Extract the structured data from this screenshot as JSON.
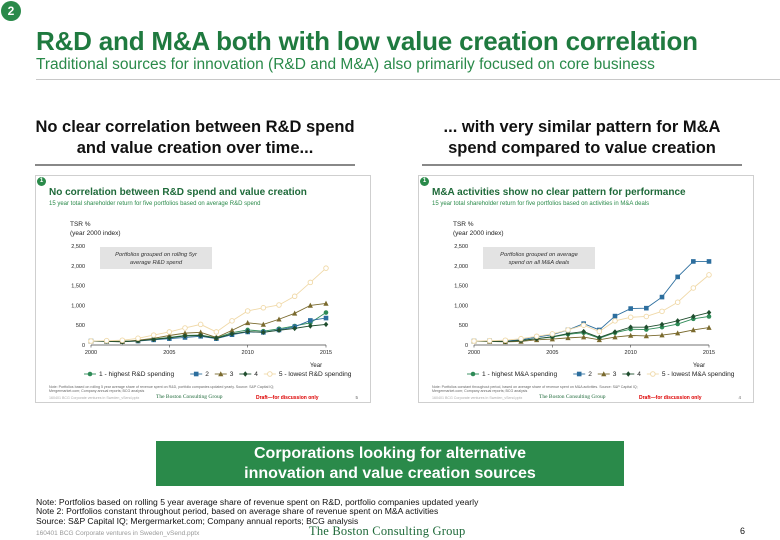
{
  "page": {
    "badge": "2",
    "title": "R&D and M&A both with low value creation correlation",
    "subtitle": "Traditional sources for innovation (R&D and M&A) also primarily focused on core business",
    "left_heading_1": "No clear correlation between R&D spend",
    "left_heading_2": "and value creation over time...",
    "right_heading_1": "... with very similar pattern for M&A",
    "right_heading_2": "spend compared to value creation",
    "callout_1": "Corporations looking for alternative",
    "callout_2": "innovation and value creation sources",
    "note_1": "Note: Portfolios based on rolling 5 year average share of revenue spent on R&D, portfolio companies updated yearly",
    "note_2": "Note 2: Portfolios constant throughout period, based on average share of revenue spent on M&A activities",
    "source": "Source: S&P Capital IQ; Mergermarket.com; Company annual reports; BCG analysis",
    "file": "160401 BCG Corporate ventures in Sweden_vSend.pptx",
    "brand": "The Boston Consulting Group",
    "page_number": "6"
  },
  "panels": [
    {
      "badge": "1",
      "title": "No correlation between R&D spend and value creation",
      "subtitle": "15 year total shareholder return for five portfolios based on average R&D spend",
      "annotation_1": "Portfolios grouped on rolling 5yr",
      "annotation_2": "average R&D spend",
      "note": "Note: Portfolios based on rolling 5 year average share of revenue spent on R&D, portfolio companies updated yearly. Source: S&P Capital IQ; Mergermarket.com; Company annual reports; BCG analysis",
      "footer": "160401 BCG Corporate ventures in Sweden_vSend.pptx",
      "brand": "The Boston Consulting Group",
      "draft": "Draft—for discussion only",
      "page": "5"
    },
    {
      "badge": "1",
      "title": "M&A activities show no clear pattern for performance",
      "subtitle": "15 year total shareholder return for five portfolios based on activities in M&A deals",
      "annotation_1": "Portfolios grouped on average",
      "annotation_2": "spend on all M&A deals",
      "note": "Note: Portfolios constant throughout period, based on average share of revenue spent on M&A activities. Source: S&P Capital IQ; Mergermarket.com; Company annual reports; BCG analysis",
      "footer": "160401 BCG Corporate ventures in Sweden_vSend.pptx",
      "brand": "The Boston Consulting Group",
      "draft": "Draft—for discussion only",
      "page": "4"
    }
  ],
  "chart_data": [
    {
      "type": "line",
      "ylabel": "TSR %\n(year 2000 index)",
      "xlabel": "Year",
      "x": [
        2000,
        2001,
        2002,
        2003,
        2004,
        2005,
        2006,
        2007,
        2008,
        2009,
        2010,
        2011,
        2012,
        2013,
        2014,
        2015
      ],
      "xticks": [
        2000,
        2005,
        2010,
        2015
      ],
      "yticks": [
        0,
        500,
        1000,
        1500,
        2000,
        2500
      ],
      "ylim": [
        0,
        2500
      ],
      "xlim": [
        2000,
        2015
      ],
      "series": [
        {
          "name": "1 - highest R&D spending",
          "color": "#2e8b57",
          "marker": "circle",
          "values": [
            100,
            100,
            95,
            110,
            150,
            190,
            240,
            250,
            180,
            310,
            380,
            350,
            410,
            480,
            560,
            820
          ]
        },
        {
          "name": "2",
          "color": "#2c6e9e",
          "marker": "square",
          "values": [
            100,
            90,
            85,
            100,
            130,
            160,
            190,
            220,
            160,
            260,
            330,
            320,
            380,
            460,
            620,
            680
          ]
        },
        {
          "name": "3",
          "color": "#7a6a2e",
          "marker": "triangle",
          "values": [
            100,
            95,
            85,
            120,
            170,
            240,
            300,
            320,
            190,
            370,
            560,
            520,
            650,
            800,
            1000,
            1050
          ]
        },
        {
          "name": "4",
          "color": "#1f4e2e",
          "marker": "diamond",
          "values": [
            100,
            90,
            80,
            105,
            140,
            180,
            230,
            240,
            170,
            280,
            340,
            320,
            370,
            420,
            480,
            520
          ]
        },
        {
          "name": "5 - lowest R&D spending",
          "color": "#f0d9a8",
          "marker": "circle-open",
          "values": [
            100,
            110,
            120,
            170,
            250,
            330,
            430,
            520,
            330,
            610,
            860,
            940,
            1010,
            1230,
            1580,
            1940
          ]
        }
      ],
      "legend": "bottom"
    },
    {
      "type": "line",
      "ylabel": "TSR %\n(year 2000 index)",
      "xlabel": "Year",
      "x": [
        2000,
        2001,
        2002,
        2003,
        2004,
        2005,
        2006,
        2007,
        2008,
        2009,
        2010,
        2011,
        2012,
        2013,
        2014,
        2015
      ],
      "xticks": [
        2000,
        2005,
        2010,
        2015
      ],
      "yticks": [
        0,
        500,
        1000,
        1500,
        2000,
        2500
      ],
      "ylim": [
        0,
        2500
      ],
      "xlim": [
        2000,
        2015
      ],
      "series": [
        {
          "name": "1 - highest M&A spending",
          "color": "#2e8b57",
          "marker": "circle",
          "values": [
            100,
            100,
            90,
            110,
            160,
            200,
            270,
            310,
            170,
            310,
            400,
            390,
            450,
            530,
            660,
            720
          ]
        },
        {
          "name": "2",
          "color": "#2c6e9e",
          "marker": "square",
          "values": [
            100,
            105,
            100,
            130,
            200,
            260,
            380,
            540,
            380,
            730,
            920,
            930,
            1210,
            1720,
            2110,
            2110
          ]
        },
        {
          "name": "3",
          "color": "#7a6a2e",
          "marker": "triangle",
          "values": [
            100,
            90,
            80,
            90,
            130,
            150,
            180,
            200,
            130,
            200,
            240,
            230,
            250,
            300,
            380,
            440
          ]
        },
        {
          "name": "4",
          "color": "#1f4e2e",
          "marker": "diamond",
          "values": [
            100,
            95,
            90,
            115,
            160,
            210,
            290,
            340,
            190,
            330,
            450,
            450,
            520,
            610,
            720,
            820
          ]
        },
        {
          "name": "5 - lowest M&A spending",
          "color": "#f0d9a8",
          "marker": "circle-open",
          "values": [
            100,
            110,
            120,
            160,
            220,
            280,
            380,
            500,
            340,
            610,
            700,
            720,
            850,
            1080,
            1440,
            1770
          ]
        }
      ],
      "legend": "bottom"
    }
  ]
}
